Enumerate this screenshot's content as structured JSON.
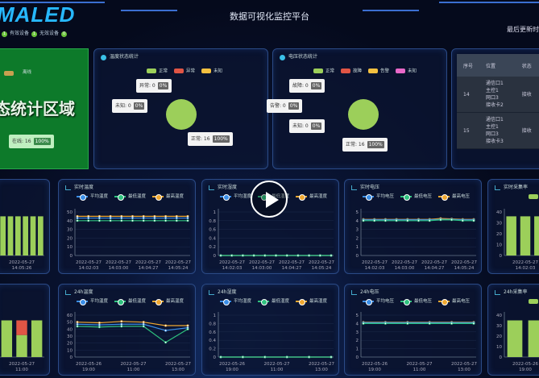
{
  "header": {
    "logo": "MALED",
    "title": "数据可视化监控平台",
    "last_update": "最后更新时",
    "device_stats": [
      {
        "value": "1"
      },
      {
        "label": "有效设备",
        "value": "1"
      },
      {
        "label": "无效设备",
        "value": "0"
      }
    ]
  },
  "online_panel": {
    "legend": "离线",
    "big_text": "态统计区域",
    "callout_label": "在线: 16",
    "callout_pct": "100%"
  },
  "temp_status": {
    "title": "温度状态统计",
    "legend": [
      {
        "label": "正常",
        "color": "#9ccf5a"
      },
      {
        "label": "异常",
        "color": "#e05545"
      },
      {
        "label": "未知",
        "color": "#f4c040"
      }
    ],
    "callouts": [
      {
        "label": "异常: 0",
        "pct": "0%"
      },
      {
        "label": "未知: 0",
        "pct": "0%"
      },
      {
        "label": "正常: 16",
        "pct": "100%"
      }
    ]
  },
  "volt_status": {
    "title": "电压状态统计",
    "legend": [
      {
        "label": "正常",
        "color": "#9ccf5a"
      },
      {
        "label": "故障",
        "color": "#e05545"
      },
      {
        "label": "告警",
        "color": "#f4c040"
      },
      {
        "label": "未知",
        "color": "#e868c8"
      }
    ],
    "callouts": [
      {
        "label": "故障: 0",
        "pct": "0%"
      },
      {
        "label": "告警: 0",
        "pct": "0%"
      },
      {
        "label": "未知: 0",
        "pct": "0%"
      },
      {
        "label": "正常: 16",
        "pct": "100%"
      }
    ]
  },
  "table": {
    "headers": [
      "序号",
      "位置",
      "状态"
    ],
    "rows": [
      {
        "id": "14",
        "location": [
          "通信口1",
          "主控1",
          "网口3",
          "接收卡2"
        ],
        "status": "接收"
      },
      {
        "id": "15",
        "location": [
          "通信口1",
          "主控1",
          "网口3",
          "接收卡3"
        ],
        "status": "接收"
      }
    ]
  },
  "line_legend_temp": [
    "平均温度",
    "最低温度",
    "最高温度"
  ],
  "line_legend_hum": [
    "平均湿度",
    "最低湿度",
    "最高湿度"
  ],
  "line_legend_volt": [
    "平均电压",
    "最低电压",
    "最高电压"
  ],
  "series_colors": {
    "avg": "#3a8ee8",
    "min": "#2ec27e",
    "max": "#f0a830"
  },
  "chart_data": [
    {
      "id": "rt_bars_left",
      "type": "bar",
      "ylim": [
        0,
        40
      ],
      "categories": [
        "",
        "",
        "",
        "",
        "",
        ""
      ],
      "series": [
        {
          "values": [
            36,
            36,
            36,
            36,
            36,
            36
          ],
          "color": "#9ccf5a"
        }
      ],
      "xlabels": [
        "2022-05-27 14:05:26"
      ],
      "show_yaxis": false
    },
    {
      "id": "rt_temp",
      "type": "line",
      "title": "实时温度",
      "ylim": [
        0,
        50
      ],
      "yticks": [
        0,
        10,
        20,
        30,
        40,
        50
      ],
      "xlabels": [
        "2022-05-27 14:02:03",
        "2022-05-27 14:03:00",
        "2022-05-27 14:04:27",
        "2022-05-27 14:05:24"
      ],
      "series": [
        {
          "name": "平均温度",
          "values": [
            43,
            43,
            43,
            43,
            43,
            43,
            43,
            43,
            43,
            43,
            43
          ]
        },
        {
          "name": "最低温度",
          "values": [
            40,
            40,
            40,
            40,
            40,
            40,
            40,
            40,
            40,
            40,
            40
          ]
        },
        {
          "name": "最高温度",
          "values": [
            45,
            45,
            45,
            45,
            45,
            45,
            45,
            45,
            45,
            45,
            45
          ]
        }
      ]
    },
    {
      "id": "rt_hum",
      "type": "line",
      "title": "实时湿度",
      "ylim": [
        0,
        1
      ],
      "yticks": [
        0,
        0.2,
        0.4,
        0.6,
        0.8,
        1
      ],
      "xlabels": [
        "2022-05-27 14:02:03",
        "2022-05-27 14:03:00",
        "2022-05-27 14:04:27",
        "2022-05-27 14:05:24"
      ],
      "series": [
        {
          "name": "平均湿度",
          "values": [
            0,
            0,
            0,
            0,
            0,
            0,
            0,
            0,
            0,
            0,
            0
          ]
        },
        {
          "name": "最低湿度",
          "values": [
            0,
            0,
            0,
            0,
            0,
            0,
            0,
            0,
            0,
            0,
            0
          ]
        },
        {
          "name": "最高湿度",
          "values": [
            0,
            0,
            0,
            0,
            0,
            0,
            0,
            0,
            0,
            0,
            0
          ]
        }
      ]
    },
    {
      "id": "rt_volt",
      "type": "line",
      "title": "实时电压",
      "ylim": [
        0,
        5
      ],
      "yticks": [
        0,
        1,
        2,
        3,
        4,
        5
      ],
      "xlabels": [
        "2022-05-27 14:02:03",
        "2022-05-27 14:03:00",
        "2022-05-27 14:04:27",
        "2022-05-27 14:05:24"
      ],
      "series": [
        {
          "name": "平均电压",
          "values": [
            4.1,
            4.1,
            4.1,
            4.1,
            4.1,
            4.1,
            4.1,
            4.15,
            4.15,
            4.1,
            4.1
          ]
        },
        {
          "name": "最低电压",
          "values": [
            4.0,
            4.0,
            4.0,
            4.0,
            4.0,
            4.0,
            4.0,
            4.1,
            4.1,
            4.0,
            4.0
          ]
        },
        {
          "name": "最高电压",
          "values": [
            4.15,
            4.15,
            4.15,
            4.15,
            4.15,
            4.15,
            4.15,
            4.25,
            4.2,
            4.15,
            4.15
          ]
        }
      ]
    },
    {
      "id": "rt_rate",
      "type": "bar",
      "title": "实时采集率",
      "ylim": [
        0,
        40
      ],
      "yticks": [
        0,
        10,
        20,
        30,
        40
      ],
      "categories": [
        "",
        "",
        ""
      ],
      "series": [
        {
          "values": [
            36,
            36,
            36
          ],
          "color": "#9ccf5a"
        }
      ],
      "xlabels": [
        "2022-05-27 14:02:03"
      ],
      "show_yaxis": true
    },
    {
      "id": "h24_bars_left",
      "type": "bar",
      "ylim": [
        0,
        40
      ],
      "categories": [
        "",
        "",
        ""
      ],
      "series": [
        {
          "values": [
            35,
            21,
            35
          ],
          "color": "#9ccf5a"
        },
        {
          "values": [
            0,
            14,
            0
          ],
          "color": "#e05545"
        }
      ],
      "xlabels": [
        "2022-05-27 11:00"
      ],
      "show_yaxis": false
    },
    {
      "id": "h24_temp",
      "type": "line",
      "title": "24h温度",
      "ylim": [
        0,
        60
      ],
      "yticks": [
        0,
        10,
        20,
        30,
        40,
        50,
        60
      ],
      "xlabels": [
        "2022-05-26 19:00",
        "2022-05-27 11:00",
        "2022-05-27 13:00"
      ],
      "series": [
        {
          "name": "平均温度",
          "values": [
            47,
            46,
            47,
            47,
            38,
            42
          ]
        },
        {
          "name": "最低温度",
          "values": [
            44,
            43,
            44,
            44,
            21,
            40
          ]
        },
        {
          "name": "最高温度",
          "values": [
            50,
            49,
            51,
            50,
            45,
            45
          ]
        }
      ]
    },
    {
      "id": "h24_hum",
      "type": "line",
      "title": "24h湿度",
      "ylim": [
        0,
        1
      ],
      "yticks": [
        0,
        0.2,
        0.4,
        0.6,
        0.8,
        1
      ],
      "xlabels": [
        "2022-05-26 19:00",
        "2022-05-27 11:00",
        "2022-05-27 13:00"
      ],
      "series": [
        {
          "name": "平均湿度",
          "values": [
            0,
            0,
            0,
            0,
            0,
            0
          ]
        },
        {
          "name": "最低湿度",
          "values": [
            0,
            0,
            0,
            0,
            0,
            0
          ]
        },
        {
          "name": "最高湿度",
          "values": [
            0,
            0,
            0,
            0,
            0,
            0
          ]
        }
      ]
    },
    {
      "id": "h24_volt",
      "type": "line",
      "title": "24h电压",
      "ylim": [
        0,
        5
      ],
      "yticks": [
        0,
        1,
        2,
        3,
        4,
        5
      ],
      "xlabels": [
        "2022-05-26 19:00",
        "2022-05-27 11:00",
        "2022-05-27 13:00"
      ],
      "series": [
        {
          "name": "平均电压",
          "values": [
            4.1,
            4.1,
            4.1,
            4.1,
            4.1,
            4.1
          ]
        },
        {
          "name": "最低电压",
          "values": [
            4.0,
            4.0,
            4.0,
            4.0,
            4.0,
            4.0
          ]
        },
        {
          "name": "最高电压",
          "values": [
            4.15,
            4.15,
            4.15,
            4.15,
            4.15,
            4.15
          ]
        }
      ]
    },
    {
      "id": "h24_rate",
      "type": "bar",
      "title": "24h采集率",
      "ylim": [
        0,
        40
      ],
      "yticks": [
        0,
        10,
        20,
        30,
        40
      ],
      "categories": [
        "",
        ""
      ],
      "series": [
        {
          "values": [
            35,
            35
          ],
          "color": "#9ccf5a"
        }
      ],
      "xlabels": [
        "2022-05-26 19:00"
      ],
      "show_yaxis": true
    }
  ],
  "video": {
    "icon": "play-icon"
  }
}
